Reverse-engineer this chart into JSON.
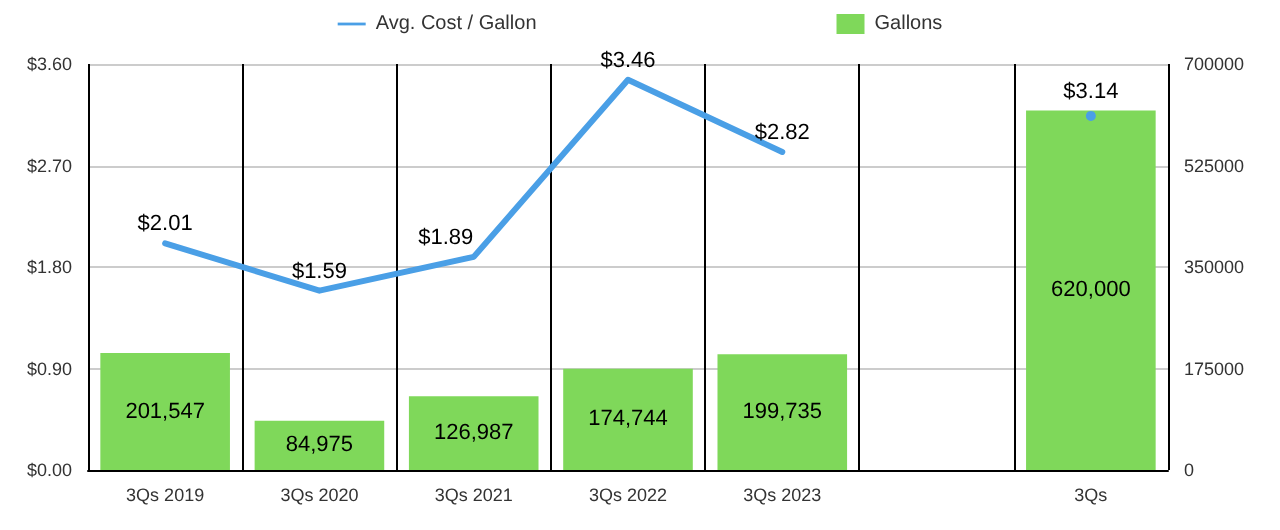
{
  "chart_data": {
    "type": "bar",
    "categories": [
      "3Qs 2019",
      "3Qs 2020",
      "3Qs 2021",
      "3Qs 2022",
      "3Qs 2023",
      null,
      "3Qs"
    ],
    "series": [
      {
        "name": "Avg. Cost / Gallon",
        "type": "line",
        "color": "#4a9fe6",
        "axis": "y",
        "values": [
          2.01,
          1.59,
          1.89,
          3.46,
          2.82,
          null,
          3.14
        ],
        "value_labels": [
          "$2.01",
          "$1.59",
          "$1.89",
          "$3.46",
          "$2.82",
          null,
          "$3.14"
        ]
      },
      {
        "name": "Gallons",
        "color": "#7fd85a",
        "axis": "y2",
        "values": [
          201547,
          84975,
          126987,
          174744,
          199735,
          null,
          620000
        ],
        "value_labels": [
          "201,547",
          "84,975",
          "126,987",
          "174,744",
          "199,735",
          null,
          "620,000"
        ]
      }
    ],
    "ylim": [
      0,
      3.6
    ],
    "yticks": [
      {
        "value": 0,
        "label": "$0.00"
      },
      {
        "value": 0.9,
        "label": "$0.90"
      },
      {
        "value": 1.8,
        "label": "$1.80"
      },
      {
        "value": 2.7,
        "label": "$2.70"
      },
      {
        "value": 3.6,
        "label": "$3.60"
      }
    ],
    "y2lim": [
      0,
      700000
    ],
    "y2ticks": [
      0,
      175000,
      350000,
      525000,
      700000
    ],
    "grid": true,
    "legend": "top",
    "marker": "none",
    "line_style": "solid"
  }
}
